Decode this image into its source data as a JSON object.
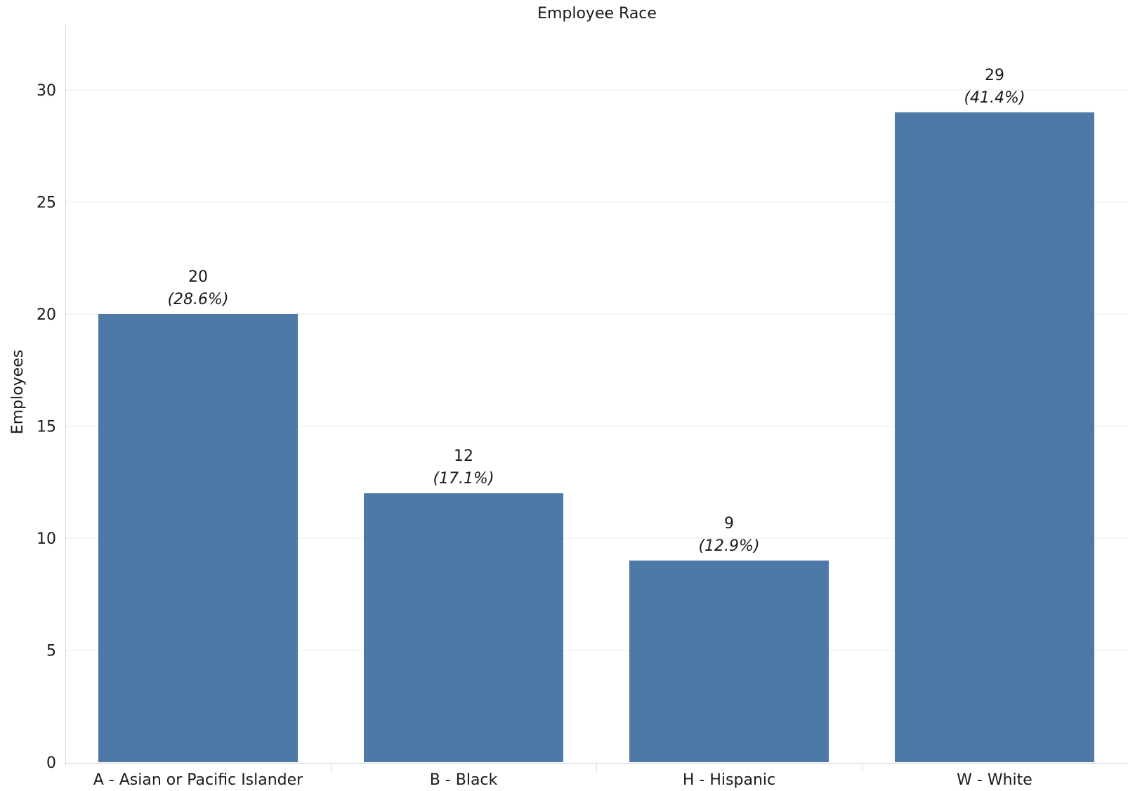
{
  "chart_data": {
    "type": "bar",
    "title": "Employee Race",
    "xlabel": "",
    "ylabel": "Employees",
    "categories": [
      "A - Asian or Pacific Islander",
      "B - Black",
      "H - Hispanic",
      "W - White"
    ],
    "values": [
      20,
      12,
      9,
      29
    ],
    "percent_labels": [
      "(28.6%)",
      "(17.1%)",
      "(12.9%)",
      "(41.4%)"
    ],
    "ylim": [
      0,
      33
    ],
    "yticks": [
      0,
      5,
      10,
      15,
      20,
      25,
      30
    ],
    "grid": true,
    "legend": "none",
    "bar_color": "#4e79a7",
    "grid_color": "#ebebeb",
    "axis_color": "#d9d9d9",
    "text_color": "#1a1a1a"
  }
}
